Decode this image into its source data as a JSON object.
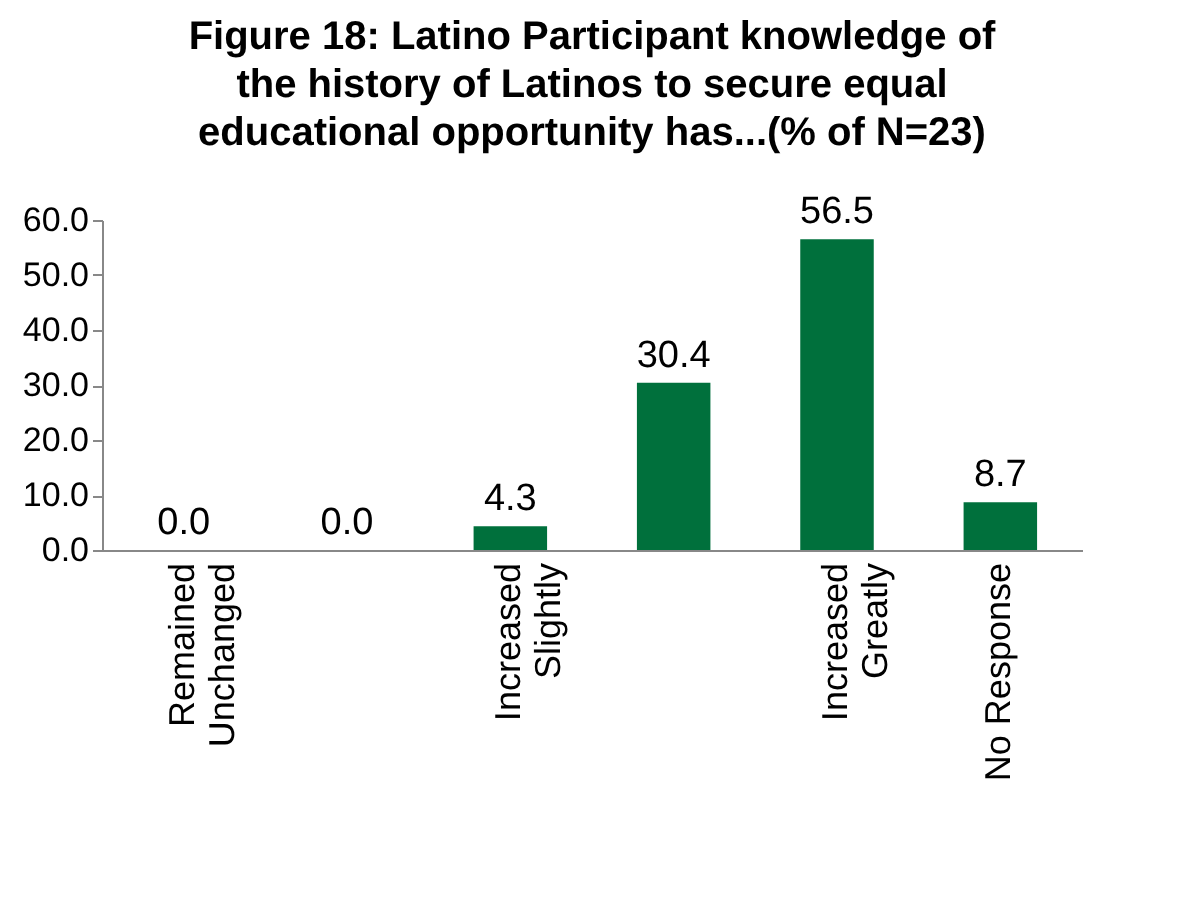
{
  "chart_data": {
    "type": "bar",
    "title": "Figure 18: Latino Participant knowledge of\nthe history of Latinos to secure equal\neducational opportunity has...(% of N=23)",
    "categories": [
      "Remained Unchanged",
      null,
      "Increased Slightly",
      null,
      "Increased Greatly",
      "No Response"
    ],
    "values": [
      0,
      0,
      4.3,
      30.4,
      56.5,
      8.7
    ],
    "value_labels": [
      "0.0",
      "0.0",
      "4.3",
      "30.4",
      "56.5",
      "8.7"
    ],
    "color": "#00703c",
    "ylim": [
      0,
      60
    ],
    "yticks": [
      {
        "value": 0,
        "label": "0.0"
      },
      {
        "value": 10,
        "label": "10.0"
      },
      {
        "value": 20,
        "label": "20.0"
      },
      {
        "value": 30,
        "label": "30.0"
      },
      {
        "value": 40,
        "label": "40.0"
      },
      {
        "value": 50,
        "label": "50.0"
      },
      {
        "value": 60,
        "label": "60.0"
      }
    ],
    "grid": false
  }
}
